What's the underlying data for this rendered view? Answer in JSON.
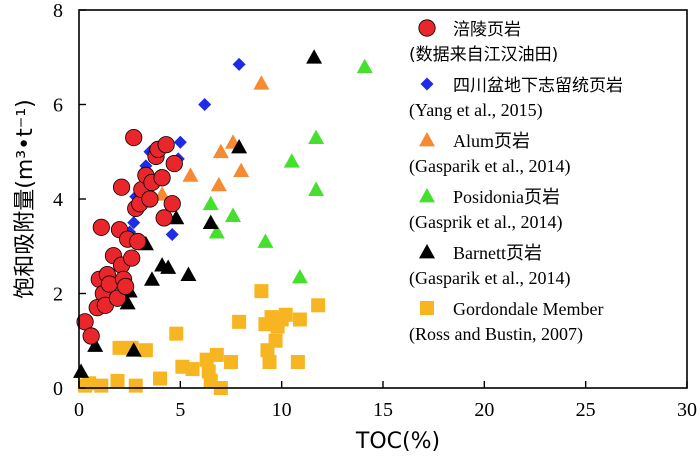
{
  "chart_data": {
    "type": "scatter",
    "xlabel": "TOC(%)",
    "ylabel": "饱和吸附量(m³•t⁻¹)",
    "xlim": [
      0,
      30
    ],
    "ylim": [
      0,
      8
    ],
    "x_ticks": [
      "0",
      "5",
      "10",
      "15",
      "20",
      "25",
      "30"
    ],
    "y_ticks": [
      "0",
      "2",
      "4",
      "6",
      "8"
    ],
    "legend_position": "top-right",
    "series": [
      {
        "name": "涪陵页岩",
        "source": "(数据来自江汉油田)",
        "marker": "circle",
        "color": "#e8262b",
        "points": [
          [
            0.3,
            1.4
          ],
          [
            0.6,
            1.1
          ],
          [
            0.9,
            1.7
          ],
          [
            1.0,
            2.3
          ],
          [
            1.1,
            3.4
          ],
          [
            1.2,
            2.0
          ],
          [
            1.3,
            1.75
          ],
          [
            1.4,
            2.4
          ],
          [
            1.5,
            2.2
          ],
          [
            1.7,
            2.8
          ],
          [
            1.9,
            1.9
          ],
          [
            2.0,
            3.35
          ],
          [
            2.1,
            2.6
          ],
          [
            2.1,
            4.25
          ],
          [
            2.2,
            2.3
          ],
          [
            2.3,
            2.15
          ],
          [
            2.4,
            3.15
          ],
          [
            2.6,
            2.75
          ],
          [
            2.7,
            5.3
          ],
          [
            2.8,
            3.8
          ],
          [
            2.9,
            3.1
          ],
          [
            3.0,
            3.9
          ],
          [
            3.1,
            4.2
          ],
          [
            3.3,
            4.5
          ],
          [
            3.5,
            4.0
          ],
          [
            3.6,
            4.35
          ],
          [
            3.8,
            4.9
          ],
          [
            3.9,
            5.05
          ],
          [
            4.1,
            4.45
          ],
          [
            4.2,
            3.6
          ],
          [
            4.3,
            5.15
          ],
          [
            4.6,
            3.9
          ],
          [
            4.7,
            4.75
          ]
        ]
      },
      {
        "name": "四川盆地下志留统页岩",
        "source": "(Yang  et al., 2015)",
        "marker": "diamond",
        "color": "#1f2be6",
        "points": [
          [
            1.1,
            1.85
          ],
          [
            2.0,
            2.6
          ],
          [
            2.5,
            3.3
          ],
          [
            2.7,
            3.5
          ],
          [
            2.8,
            4.05
          ],
          [
            3.1,
            4.0
          ],
          [
            3.3,
            4.7
          ],
          [
            3.5,
            5.0
          ],
          [
            4.0,
            4.5
          ],
          [
            4.6,
            3.25
          ],
          [
            4.9,
            4.85
          ],
          [
            5.0,
            5.2
          ],
          [
            6.2,
            6.0
          ],
          [
            7.9,
            6.85
          ]
        ]
      },
      {
        "name": "Alum页岩",
        "source": "(Gasparik  et al., 2014)",
        "marker": "triangle",
        "color": "#f58a33",
        "points": [
          [
            2.0,
            2.15
          ],
          [
            4.1,
            4.1
          ],
          [
            5.5,
            4.5
          ],
          [
            6.9,
            4.3
          ],
          [
            7.0,
            5.0
          ],
          [
            7.6,
            5.2
          ],
          [
            8.0,
            4.6
          ],
          [
            9.0,
            6.45
          ]
        ]
      },
      {
        "name": "Posidonia页岩",
        "source": "(Gasprik  et al., 2014)",
        "marker": "triangle",
        "color": "#45e02e",
        "points": [
          [
            6.5,
            3.9
          ],
          [
            6.8,
            3.3
          ],
          [
            7.6,
            3.65
          ],
          [
            9.2,
            3.1
          ],
          [
            10.5,
            4.8
          ],
          [
            10.9,
            2.35
          ],
          [
            11.7,
            4.2
          ],
          [
            11.7,
            5.3
          ],
          [
            14.1,
            6.8
          ]
        ]
      },
      {
        "name": "Barnett页岩",
        "source": "(Gasparik  et al., 2014)",
        "marker": "triangle",
        "color": "#000000",
        "points": [
          [
            0.1,
            0.35
          ],
          [
            0.8,
            0.9
          ],
          [
            2.4,
            1.8
          ],
          [
            2.5,
            2.05
          ],
          [
            2.7,
            0.8
          ],
          [
            3.3,
            3.05
          ],
          [
            3.6,
            2.3
          ],
          [
            4.1,
            2.6
          ],
          [
            4.4,
            2.55
          ],
          [
            4.8,
            3.6
          ],
          [
            5.4,
            2.4
          ],
          [
            6.5,
            3.5
          ],
          [
            7.9,
            5.1
          ],
          [
            11.6,
            7.0
          ]
        ]
      },
      {
        "name": "Gordondale Member",
        "source": "(Ross and Bustin, 2007)",
        "marker": "square",
        "color": "#f7b521",
        "points": [
          [
            0.3,
            0.05
          ],
          [
            0.5,
            0.1
          ],
          [
            1.1,
            0.05
          ],
          [
            1.9,
            0.15
          ],
          [
            2.0,
            0.85
          ],
          [
            2.6,
            0.85
          ],
          [
            2.8,
            0.05
          ],
          [
            3.3,
            0.8
          ],
          [
            4.0,
            0.2
          ],
          [
            4.8,
            1.15
          ],
          [
            5.1,
            0.45
          ],
          [
            5.6,
            0.4
          ],
          [
            6.3,
            0.6
          ],
          [
            6.4,
            0.35
          ],
          [
            6.5,
            0.15
          ],
          [
            6.8,
            0.7
          ],
          [
            7.0,
            0.0
          ],
          [
            7.5,
            0.55
          ],
          [
            7.9,
            1.4
          ],
          [
            9.0,
            2.05
          ],
          [
            9.2,
            1.35
          ],
          [
            9.3,
            0.8
          ],
          [
            9.4,
            0.55
          ],
          [
            9.5,
            1.5
          ],
          [
            9.7,
            1.0
          ],
          [
            9.8,
            1.3
          ],
          [
            10.0,
            1.45
          ],
          [
            10.2,
            1.55
          ],
          [
            10.8,
            0.55
          ],
          [
            10.9,
            1.45
          ],
          [
            11.8,
            1.75
          ]
        ]
      }
    ]
  }
}
